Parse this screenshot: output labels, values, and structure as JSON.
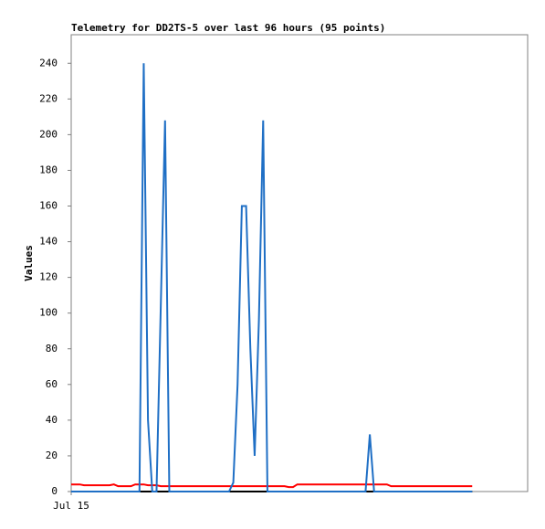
{
  "chart_data": {
    "type": "line",
    "title": "Telemetry for DD2TS-5 over last 96 hours (95 points)",
    "y_label": "Values",
    "x": [
      0,
      1,
      2,
      3,
      4,
      5,
      6,
      7,
      8,
      9,
      10,
      11,
      12,
      13,
      14,
      15,
      16,
      17,
      18,
      19,
      20,
      21,
      22,
      23,
      24,
      25,
      26,
      27,
      28,
      29,
      30,
      31,
      32,
      33,
      34,
      35,
      36,
      37,
      38,
      39,
      40,
      41,
      42,
      43,
      44,
      45,
      46,
      47,
      48,
      49,
      50,
      51,
      52,
      53,
      54,
      55,
      56,
      57,
      58,
      59,
      60,
      61,
      62,
      63,
      64,
      65,
      66,
      67,
      68,
      69,
      70,
      71,
      72,
      73,
      74,
      75,
      76,
      77,
      78,
      79,
      80,
      81,
      82,
      83,
      84,
      85,
      86,
      87,
      88,
      89,
      90,
      91,
      92,
      93,
      94
    ],
    "xlim": [
      0,
      107
    ],
    "xticks": [
      {
        "value": 0,
        "label": "Jul 15"
      }
    ],
    "ylim": [
      0,
      256
    ],
    "yticks": [
      0,
      20,
      40,
      60,
      80,
      100,
      120,
      140,
      160,
      180,
      200,
      220,
      240
    ],
    "series": [
      {
        "color": "#000000",
        "values": [
          0,
          0,
          0,
          0,
          0,
          0,
          0,
          0,
          0,
          0,
          0,
          0,
          0,
          0,
          0,
          0,
          0,
          0,
          0,
          0,
          0,
          0,
          0,
          0,
          0,
          0,
          0,
          0,
          0,
          0,
          0,
          0,
          0,
          0,
          0,
          0,
          0,
          0,
          0,
          0,
          0,
          0,
          0,
          0,
          0,
          0,
          0,
          0,
          0,
          0,
          0,
          0,
          0,
          0,
          0,
          0,
          0,
          0,
          0,
          0,
          0,
          0,
          0,
          0,
          0,
          0,
          0,
          0,
          0,
          0,
          0,
          0,
          0,
          0,
          0,
          0,
          0,
          0,
          0,
          0,
          0,
          0,
          0,
          0,
          0,
          0,
          0,
          0,
          0,
          0,
          0,
          0,
          0,
          0,
          0
        ]
      },
      {
        "color": "#ff0000",
        "values": [
          4,
          4,
          4,
          3.5,
          3.5,
          3.5,
          3.5,
          3.5,
          3.5,
          3.5,
          4,
          3,
          3,
          3,
          3,
          4,
          4,
          4,
          3.5,
          3.5,
          3.5,
          3,
          3,
          3,
          3,
          3,
          3,
          3,
          3,
          3,
          3,
          3,
          3,
          3,
          3,
          3,
          3,
          3,
          3,
          3,
          3,
          3,
          3,
          3,
          3,
          3,
          3,
          3,
          3,
          3,
          3,
          2.5,
          2.5,
          4,
          4,
          4,
          4,
          4,
          4,
          4,
          4,
          4,
          4,
          4,
          4,
          4,
          4,
          4,
          4,
          4,
          4,
          4,
          4,
          4,
          4,
          3,
          3,
          3,
          3,
          3,
          3,
          3,
          3,
          3,
          3,
          3,
          3,
          3,
          3,
          3,
          3,
          3,
          3,
          3,
          3
        ]
      },
      {
        "color": "#1f6fc5",
        "values": [
          0,
          0,
          0,
          0,
          0,
          0,
          0,
          0,
          0,
          0,
          0,
          0,
          0,
          0,
          0,
          0,
          0,
          240,
          40,
          0,
          0,
          104,
          208,
          0,
          0,
          0,
          0,
          0,
          0,
          0,
          0,
          0,
          0,
          0,
          0,
          0,
          0,
          0,
          5,
          60,
          160,
          160,
          80,
          20,
          96,
          208,
          0,
          0,
          0,
          0,
          0,
          0,
          0,
          0,
          0,
          0,
          0,
          0,
          0,
          0,
          0,
          0,
          0,
          0,
          0,
          0,
          0,
          0,
          0,
          0,
          32,
          0,
          0,
          0,
          0,
          0,
          0,
          0,
          0,
          0,
          0,
          0,
          0,
          0,
          0,
          0,
          0,
          0,
          0,
          0,
          0,
          0,
          0,
          0,
          0
        ]
      }
    ]
  }
}
